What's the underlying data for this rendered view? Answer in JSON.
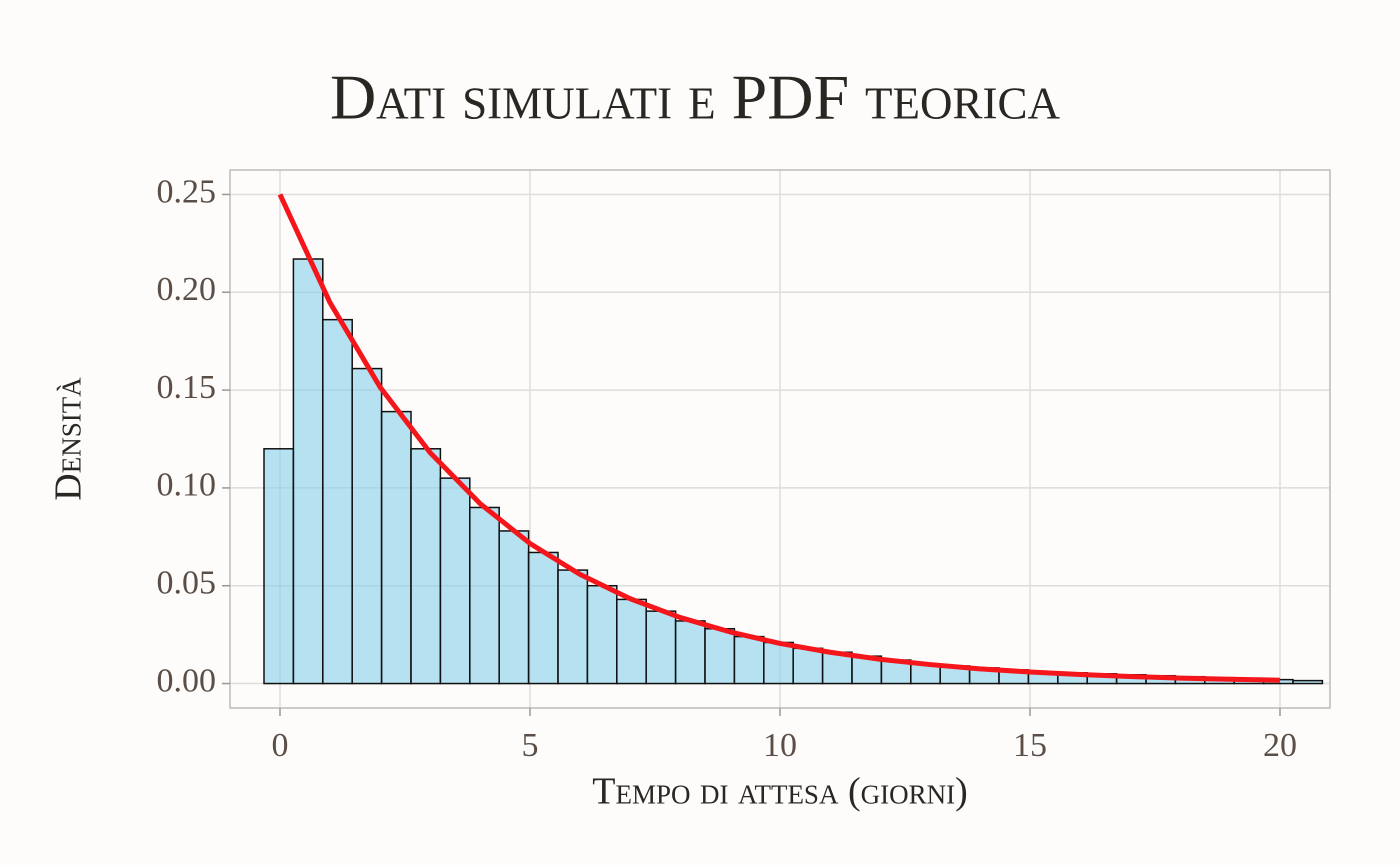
{
  "chart_data": {
    "type": "histogram",
    "title": "Dati simulati e PDF teorica",
    "xlabel": "Tempo di attesa (giorni)",
    "ylabel": "Densità",
    "bins": [
      -0.32,
      0.268,
      0.856,
      1.444,
      2.032,
      2.62,
      3.208,
      3.796,
      4.384,
      4.972,
      5.56,
      6.148,
      6.736,
      7.324,
      7.912,
      8.5,
      9.088,
      9.676,
      10.264,
      10.852,
      11.44,
      12.028,
      12.616,
      13.204,
      13.792,
      14.38,
      14.968,
      15.556,
      16.144,
      16.732,
      17.32,
      17.908,
      18.496,
      19.084,
      19.672,
      20.26,
      20.848
    ],
    "values": [
      0.12,
      0.217,
      0.186,
      0.161,
      0.139,
      0.12,
      0.105,
      0.09,
      0.078,
      0.067,
      0.058,
      0.05,
      0.043,
      0.037,
      0.032,
      0.028,
      0.024,
      0.021,
      0.018,
      0.016,
      0.014,
      0.012,
      0.01,
      0.009,
      0.008,
      0.007,
      0.006,
      0.0055,
      0.005,
      0.0045,
      0.004,
      0.0035,
      0.003,
      0.0025,
      0.002,
      0.0015
    ],
    "color": "#87ceeb",
    "curve": {
      "type": "line",
      "color": "#f5161b",
      "x": [
        0,
        1,
        2,
        3,
        4,
        5,
        6,
        7,
        8,
        9,
        10,
        11,
        12,
        13,
        14,
        15,
        16,
        17,
        18,
        19,
        20
      ],
      "values": [
        0.25,
        0.1947,
        0.1516,
        0.1181,
        0.092,
        0.0716,
        0.0558,
        0.0434,
        0.0338,
        0.0264,
        0.0205,
        0.016,
        0.0124,
        0.0097,
        0.0075,
        0.0059,
        0.0046,
        0.0036,
        0.0028,
        0.0022,
        0.0017
      ]
    },
    "xlim": [
      -1,
      21
    ],
    "ylim": [
      -0.0125,
      0.2625
    ],
    "xticks": [
      0,
      5,
      10,
      15,
      20
    ],
    "yticks": [
      {
        "value": 0,
        "label": "0.00"
      },
      0.05,
      {
        "value": 0.1,
        "label": "0.10"
      },
      0.15,
      {
        "value": 0.2,
        "label": "0.20"
      },
      0.25
    ],
    "grid": true
  }
}
